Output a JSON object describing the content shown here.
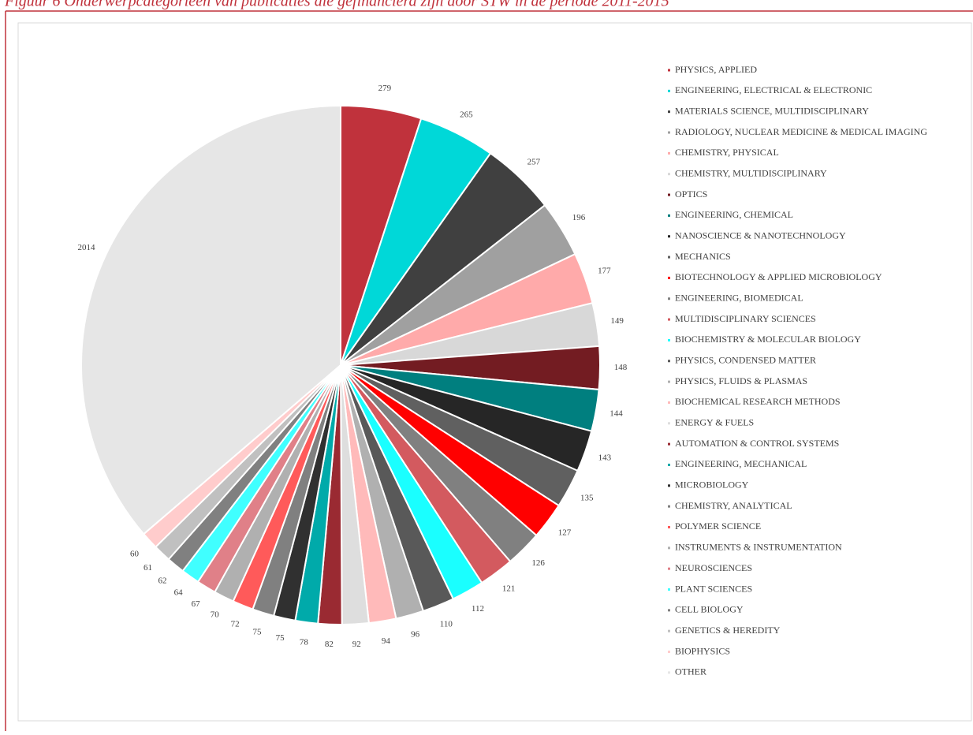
{
  "chart_data": {
    "type": "pie",
    "title": "Figuur 6 Onderwerpcategorieën van publicaties die gefinancierd zijn door STW in de periode 2011-2015",
    "categories": [
      "PHYSICS, APPLIED",
      "ENGINEERING, ELECTRICAL & ELECTRONIC",
      "MATERIALS SCIENCE, MULTIDISCIPLINARY",
      "RADIOLOGY, NUCLEAR MEDICINE & MEDICAL IMAGING",
      "CHEMISTRY, PHYSICAL",
      "CHEMISTRY, MULTIDISCIPLINARY",
      "OPTICS",
      "ENGINEERING, CHEMICAL",
      "NANOSCIENCE & NANOTECHNOLOGY",
      "MECHANICS",
      "BIOTECHNOLOGY & APPLIED MICROBIOLOGY",
      "ENGINEERING, BIOMEDICAL",
      "MULTIDISCIPLINARY SCIENCES",
      "BIOCHEMISTRY & MOLECULAR BIOLOGY",
      "PHYSICS, CONDENSED MATTER",
      "PHYSICS, FLUIDS & PLASMAS",
      "BIOCHEMICAL RESEARCH METHODS",
      "ENERGY & FUELS",
      "AUTOMATION & CONTROL SYSTEMS",
      "ENGINEERING, MECHANICAL",
      "MICROBIOLOGY",
      "CHEMISTRY, ANALYTICAL",
      "POLYMER SCIENCE",
      "INSTRUMENTS & INSTRUMENTATION",
      "NEUROSCIENCES",
      "PLANT SCIENCES",
      "CELL BIOLOGY",
      "GENETICS & HEREDITY",
      "BIOPHYSICS",
      "OTHER"
    ],
    "values": [
      279,
      265,
      257,
      196,
      177,
      149,
      148,
      144,
      143,
      135,
      127,
      126,
      121,
      112,
      110,
      96,
      94,
      92,
      82,
      78,
      75,
      75,
      72,
      70,
      67,
      64,
      62,
      61,
      60,
      2014
    ],
    "colors": [
      "#c0323c",
      "#00d8d8",
      "#404040",
      "#a0a0a0",
      "#ffaaaa",
      "#d8d8d8",
      "#731c22",
      "#007f7f",
      "#262626",
      "#606060",
      "#ff0000",
      "#808080",
      "#d35a5f",
      "#1affff",
      "#595959",
      "#b0b0b0",
      "#ffbaba",
      "#dedede",
      "#9a2a32",
      "#00aaaa",
      "#303030",
      "#808080",
      "#ff5a5a",
      "#b0b0b0",
      "#e08088",
      "#40ffff",
      "#808080",
      "#c0c0c0",
      "#ffcccc",
      "#e6e6e6"
    ],
    "legend": "right"
  }
}
